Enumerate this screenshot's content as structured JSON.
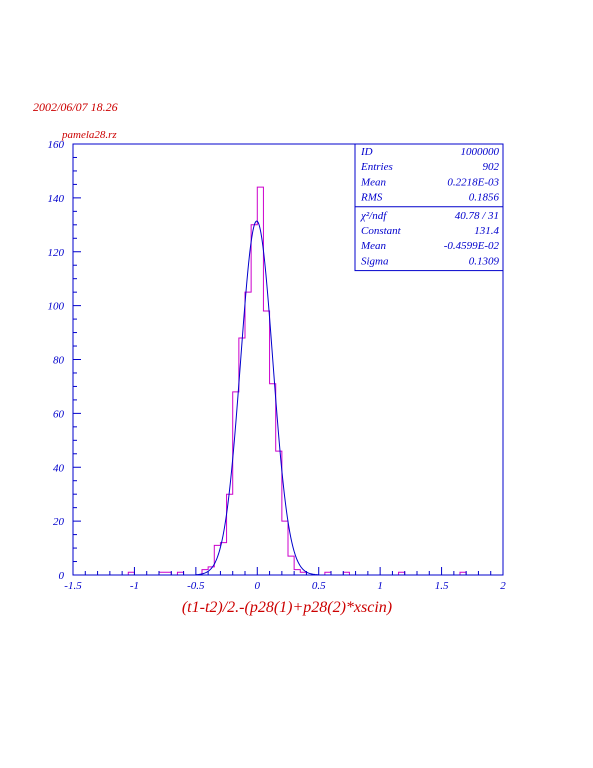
{
  "header": {
    "date": "2002/06/07   18.26",
    "file": "pamela28.rz"
  },
  "stats_box": {
    "rows_top": [
      {
        "label": "ID",
        "value": "1000000"
      },
      {
        "label": "Entries",
        "value": "902"
      },
      {
        "label": "Mean",
        "value": "0.2218E-03"
      },
      {
        "label": "RMS",
        "value": "0.1856"
      }
    ],
    "chi2": {
      "label": "χ²/ndf",
      "value": "40.78    /    31"
    },
    "rows_bottom": [
      {
        "label": "Constant",
        "value": "131.4"
      },
      {
        "label": "Mean",
        "value": "-0.4599E-02"
      },
      {
        "label": "Sigma",
        "value": "0.1309"
      }
    ]
  },
  "colors": {
    "frame": "#0000cc",
    "histogram": "#cc00cc",
    "fit": "#0000cc",
    "title_text": "#cc0000"
  },
  "chart_data": {
    "type": "histogram",
    "title": "",
    "xlabel": "(t1-t2)/2.-(p28(1)+p28(2)*xscin)",
    "ylabel": "",
    "xlim": [
      -1.5,
      2
    ],
    "ylim": [
      0,
      160
    ],
    "x_ticks": [
      "-1.5",
      "-1",
      "-0.5",
      "0",
      "0.5",
      "1",
      "1.5",
      "2"
    ],
    "y_ticks": [
      "0",
      "20",
      "40",
      "60",
      "80",
      "100",
      "120",
      "140",
      "160"
    ],
    "bin_width": 0.05,
    "bins": [
      {
        "x0": -1.05,
        "v": 1
      },
      {
        "x0": -0.8,
        "v": 1
      },
      {
        "x0": -0.75,
        "v": 1
      },
      {
        "x0": -0.65,
        "v": 1
      },
      {
        "x0": -0.45,
        "v": 2
      },
      {
        "x0": -0.4,
        "v": 3
      },
      {
        "x0": -0.35,
        "v": 11
      },
      {
        "x0": -0.3,
        "v": 12
      },
      {
        "x0": -0.25,
        "v": 30
      },
      {
        "x0": -0.2,
        "v": 68
      },
      {
        "x0": -0.15,
        "v": 88
      },
      {
        "x0": -0.1,
        "v": 105
      },
      {
        "x0": -0.05,
        "v": 130
      },
      {
        "x0": 0.0,
        "v": 144
      },
      {
        "x0": 0.05,
        "v": 98
      },
      {
        "x0": 0.1,
        "v": 71
      },
      {
        "x0": 0.15,
        "v": 46
      },
      {
        "x0": 0.2,
        "v": 20
      },
      {
        "x0": 0.25,
        "v": 7
      },
      {
        "x0": 0.3,
        "v": 2
      },
      {
        "x0": 0.35,
        "v": 1
      },
      {
        "x0": 0.55,
        "v": 1
      },
      {
        "x0": 0.7,
        "v": 1
      },
      {
        "x0": 1.15,
        "v": 1
      },
      {
        "x0": 1.65,
        "v": 1
      }
    ],
    "fit": {
      "type": "gaussian",
      "constant": 131.4,
      "mean": -0.004599,
      "sigma": 0.1309
    }
  }
}
